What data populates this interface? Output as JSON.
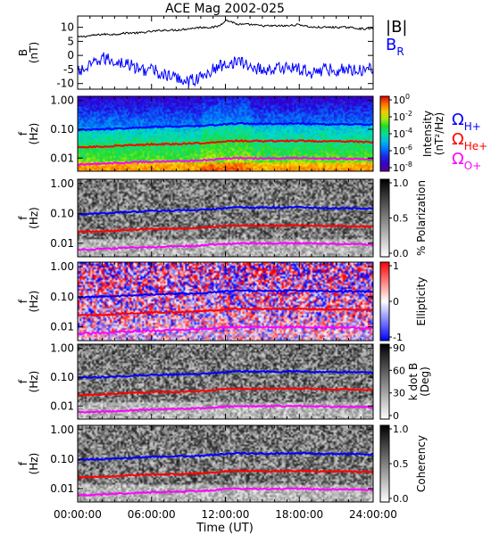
{
  "chart_data": {
    "title": "ACE Mag 2002-025",
    "time_axis": {
      "label": "Time (UT)",
      "ticks": [
        "00:00:00",
        "06:00:00",
        "12:00:00",
        "18:00:00",
        "24:00:00"
      ],
      "range_hours": [
        0,
        24
      ]
    },
    "panels": [
      {
        "type": "line",
        "ylabel_top": "B",
        "ylabel_bottom": "(nT)",
        "ylim": [
          -12,
          14
        ],
        "yticks": [
          "10",
          "5",
          "0",
          "-5",
          "-10"
        ],
        "yticks_values": [
          10,
          5,
          0,
          -5,
          -10
        ],
        "series": [
          {
            "name": "|B|",
            "color": "#000000",
            "x": [
              0,
              1,
              2,
              3,
              4,
              5,
              6,
              7,
              8,
              9,
              10,
              11,
              11.5,
              12,
              12.5,
              13,
              14,
              15,
              16,
              17,
              18,
              19,
              20,
              21,
              22,
              23,
              24
            ],
            "values": [
              6.5,
              7,
              7.5,
              7.5,
              8,
              8,
              8.5,
              9,
              9,
              9.5,
              10,
              10,
              10.5,
              12.5,
              12,
              11,
              11,
              10.5,
              10.5,
              10.5,
              11,
              10,
              10,
              10,
              10,
              9.5,
              9.5
            ]
          },
          {
            "name": "B",
            "subscript": "R",
            "color": "#0000ff",
            "x": [
              0,
              1,
              2,
              3,
              4,
              5,
              6,
              7,
              8,
              9,
              10,
              11,
              12,
              13,
              14,
              15,
              16,
              17,
              18,
              19,
              20,
              21,
              22,
              23,
              24
            ],
            "values": [
              -6,
              -4,
              -1,
              -2,
              -3,
              -5,
              -5,
              -7,
              -8,
              -9,
              -8,
              -5,
              -3,
              -2,
              -4,
              -5,
              -5,
              -4,
              -5,
              -6,
              -5,
              -5,
              -5,
              -5,
              -4
            ]
          }
        ]
      },
      {
        "type": "heatmap",
        "ylabel_top": "f",
        "ylabel_bottom": "(Hz)",
        "yticks": [
          "1.00",
          "0.10",
          "0.01"
        ],
        "yticks_values": [
          1,
          0.1,
          0.01
        ],
        "ylim": [
          0.0035,
          1.4
        ],
        "scale": "log",
        "colorbar": {
          "colormap": "rainbow",
          "label_top": "Intensity",
          "label_bottom": "(nT²/Hz)",
          "ticks": [
            {
              "base": "10",
              "exp": "0"
            },
            {
              "base": "10",
              "exp": "-2"
            },
            {
              "base": "10",
              "exp": "-4"
            },
            {
              "base": "10",
              "exp": "-6"
            },
            {
              "base": "10",
              "exp": "-8"
            }
          ]
        }
      },
      {
        "type": "heatmap",
        "ylabel_top": "f",
        "ylabel_bottom": "(Hz)",
        "yticks": [
          "1.00",
          "0.10",
          "0.01"
        ],
        "yticks_values": [
          1,
          0.1,
          0.01
        ],
        "ylim": [
          0.0035,
          1.4
        ],
        "scale": "log",
        "colorbar": {
          "colormap": "gray",
          "label_top": "% Polarization",
          "ticks": [
            "1.0",
            "0.5",
            "0.0"
          ]
        }
      },
      {
        "type": "heatmap",
        "ylabel_top": "f",
        "ylabel_bottom": "(Hz)",
        "yticks": [
          "1.00",
          "0.10",
          "0.01"
        ],
        "yticks_values": [
          1,
          0.1,
          0.01
        ],
        "ylim": [
          0.0035,
          1.4
        ],
        "scale": "log",
        "colorbar": {
          "colormap": "bluewhitered",
          "label_top": "Ellipticity",
          "ticks": [
            "1",
            "0",
            "-1"
          ]
        }
      },
      {
        "type": "heatmap",
        "ylabel_top": "f",
        "ylabel_bottom": "(Hz)",
        "yticks": [
          "1.00",
          "0.10",
          "0.01"
        ],
        "yticks_values": [
          1,
          0.1,
          0.01
        ],
        "ylim": [
          0.0035,
          1.4
        ],
        "scale": "log",
        "colorbar": {
          "colormap": "gray",
          "label_top": "k dot B",
          "label_bottom": "(Deg)",
          "ticks": [
            "90",
            "60",
            "30",
            "0"
          ]
        }
      },
      {
        "type": "heatmap",
        "ylabel_top": "f",
        "ylabel_bottom": "(Hz)",
        "yticks": [
          "1.00",
          "0.10",
          "0.01"
        ],
        "yticks_values": [
          1,
          0.1,
          0.01
        ],
        "ylim": [
          0.0035,
          1.4
        ],
        "scale": "log",
        "colorbar": {
          "colormap": "gray",
          "label_top": "Coherency",
          "ticks": [
            "1.0",
            "0.5",
            "0.0"
          ]
        }
      }
    ],
    "gyrofrequency_lines": [
      {
        "symbol": "Ω",
        "subscript": "H+",
        "color": "#0000ff",
        "x": [
          0,
          2,
          4,
          6,
          8,
          10,
          12,
          13,
          14,
          16,
          18,
          20,
          22,
          24
        ],
        "values": [
          0.095,
          0.1,
          0.11,
          0.12,
          0.125,
          0.13,
          0.15,
          0.16,
          0.155,
          0.155,
          0.16,
          0.15,
          0.15,
          0.145
        ]
      },
      {
        "symbol": "Ω",
        "subscript": "He+",
        "color": "#ff0000",
        "x": [
          0,
          2,
          4,
          6,
          8,
          10,
          12,
          13,
          14,
          16,
          18,
          20,
          22,
          24
        ],
        "values": [
          0.024,
          0.025,
          0.028,
          0.03,
          0.031,
          0.033,
          0.038,
          0.04,
          0.039,
          0.039,
          0.04,
          0.038,
          0.038,
          0.036
        ]
      },
      {
        "symbol": "Ω",
        "subscript": "O+",
        "color": "#ff00ff",
        "x": [
          0,
          2,
          4,
          6,
          8,
          10,
          12,
          13,
          14,
          16,
          18,
          20,
          22,
          24
        ],
        "values": [
          0.006,
          0.0063,
          0.007,
          0.0075,
          0.0078,
          0.0083,
          0.0095,
          0.01,
          0.0098,
          0.0098,
          0.01,
          0.0095,
          0.0095,
          0.009
        ]
      }
    ]
  }
}
